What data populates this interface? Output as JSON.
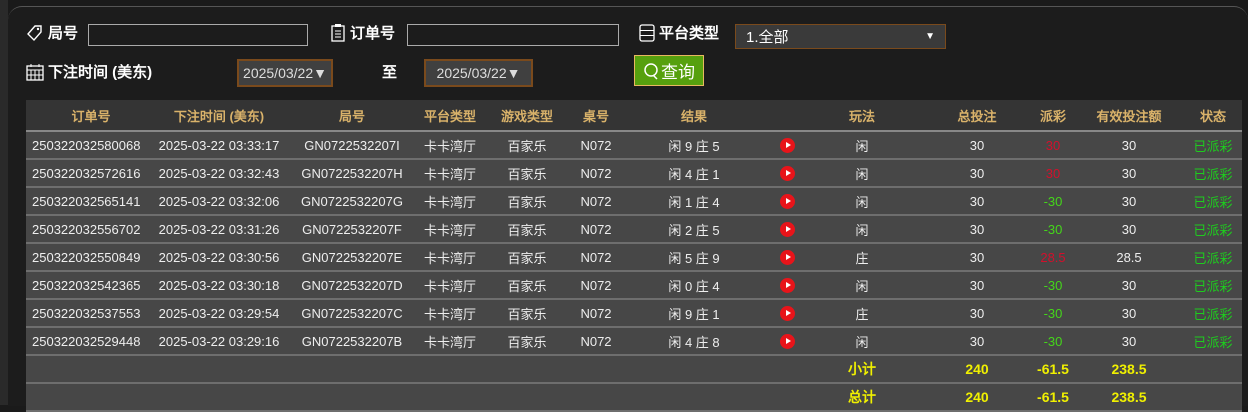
{
  "filters": {
    "round_label": "局号",
    "round_value": "",
    "order_label": "订单号",
    "order_value": "",
    "platform_label": "平台类型",
    "platform_selected": "1.全部",
    "time_label": "下注时间 (美东)",
    "date_from": "2025/03/22▼",
    "to_label": "至",
    "date_to": "2025/03/22▼",
    "search_label": "查询"
  },
  "colors": {
    "payout_loss": "#d2102c",
    "payout_win": "#44d61a",
    "status": "#1ecc1e",
    "totals": "#f0f000",
    "header": "#d9b26a",
    "search_button": "#56a00e"
  },
  "table": {
    "columns": [
      "订单号",
      "下注时间 (美东)",
      "局号",
      "平台类型",
      "游戏类型",
      "桌号",
      "结果",
      "",
      "玩法",
      "总投注",
      "派彩",
      "有效投注额",
      "状态"
    ],
    "rows": [
      {
        "order": "250322032580068",
        "time": "2025-03-22 03:33:17",
        "round": "GN0722532207I",
        "platform": "卡卡湾厅",
        "game": "百家乐",
        "table": "N072",
        "result": "闲 9 庄 5",
        "play": "闲",
        "bet": "30",
        "payout": "30",
        "payout_color": "red",
        "valid": "30",
        "status": "已派彩"
      },
      {
        "order": "250322032572616",
        "time": "2025-03-22 03:32:43",
        "round": "GN0722532207H",
        "platform": "卡卡湾厅",
        "game": "百家乐",
        "table": "N072",
        "result": "闲 4 庄 1",
        "play": "闲",
        "bet": "30",
        "payout": "30",
        "payout_color": "red",
        "valid": "30",
        "status": "已派彩"
      },
      {
        "order": "250322032565141",
        "time": "2025-03-22 03:32:06",
        "round": "GN0722532207G",
        "platform": "卡卡湾厅",
        "game": "百家乐",
        "table": "N072",
        "result": "闲 1 庄 4",
        "play": "闲",
        "bet": "30",
        "payout": "-30",
        "payout_color": "green",
        "valid": "30",
        "status": "已派彩"
      },
      {
        "order": "250322032556702",
        "time": "2025-03-22 03:31:26",
        "round": "GN0722532207F",
        "platform": "卡卡湾厅",
        "game": "百家乐",
        "table": "N072",
        "result": "闲 2 庄 5",
        "play": "闲",
        "bet": "30",
        "payout": "-30",
        "payout_color": "green",
        "valid": "30",
        "status": "已派彩"
      },
      {
        "order": "250322032550849",
        "time": "2025-03-22 03:30:56",
        "round": "GN0722532207E",
        "platform": "卡卡湾厅",
        "game": "百家乐",
        "table": "N072",
        "result": "闲 5 庄 9",
        "play": "庄",
        "bet": "30",
        "payout": "28.5",
        "payout_color": "red",
        "valid": "28.5",
        "status": "已派彩"
      },
      {
        "order": "250322032542365",
        "time": "2025-03-22 03:30:18",
        "round": "GN0722532207D",
        "platform": "卡卡湾厅",
        "game": "百家乐",
        "table": "N072",
        "result": "闲 0 庄 4",
        "play": "闲",
        "bet": "30",
        "payout": "-30",
        "payout_color": "green",
        "valid": "30",
        "status": "已派彩"
      },
      {
        "order": "250322032537553",
        "time": "2025-03-22 03:29:54",
        "round": "GN0722532207C",
        "platform": "卡卡湾厅",
        "game": "百家乐",
        "table": "N072",
        "result": "闲 9 庄 1",
        "play": "庄",
        "bet": "30",
        "payout": "-30",
        "payout_color": "green",
        "valid": "30",
        "status": "已派彩"
      },
      {
        "order": "250322032529448",
        "time": "2025-03-22 03:29:16",
        "round": "GN0722532207B",
        "platform": "卡卡湾厅",
        "game": "百家乐",
        "table": "N072",
        "result": "闲 4 庄 8",
        "play": "闲",
        "bet": "30",
        "payout": "-30",
        "payout_color": "green",
        "valid": "30",
        "status": "已派彩"
      }
    ],
    "subtotal": {
      "label": "小计",
      "bet": "240",
      "payout": "-61.5",
      "valid": "238.5"
    },
    "total": {
      "label": "总计",
      "bet": "240",
      "payout": "-61.5",
      "valid": "238.5"
    }
  }
}
